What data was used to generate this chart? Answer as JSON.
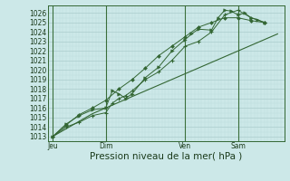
{
  "background_color": "#cce8e8",
  "grid_major_color": "#aacccc",
  "grid_minor_color": "#bbdddd",
  "line_color": "#336633",
  "xlabel": "Pression niveau de la mer( hPa )",
  "xlabel_fontsize": 7.5,
  "tick_fontsize": 5.5,
  "ylim_min": 1012.5,
  "ylim_max": 1026.8,
  "yticks": [
    1013,
    1014,
    1015,
    1016,
    1017,
    1018,
    1019,
    1020,
    1021,
    1022,
    1023,
    1024,
    1025,
    1026
  ],
  "xtick_labels": [
    "Jeu",
    "Dim",
    "Ven",
    "Sam"
  ],
  "xtick_positions": [
    0,
    32,
    80,
    112
  ],
  "vline_positions": [
    0,
    32,
    80,
    112
  ],
  "xlim_min": -3,
  "xlim_max": 140,
  "series1_x": [
    0,
    4,
    8,
    12,
    16,
    20,
    24,
    28,
    32,
    36,
    40,
    44,
    48,
    52,
    56,
    60,
    64,
    68,
    72,
    76,
    80,
    84,
    88,
    92,
    96,
    100,
    104,
    108,
    112,
    116,
    120,
    124,
    128,
    132,
    136
  ],
  "series1_y": [
    1013.0,
    1013.4,
    1013.8,
    1014.2,
    1014.6,
    1015.0,
    1015.4,
    1015.7,
    1016.0,
    1016.3,
    1016.6,
    1016.9,
    1017.2,
    1017.5,
    1017.8,
    1018.1,
    1018.4,
    1018.7,
    1019.0,
    1019.3,
    1019.6,
    1019.9,
    1020.2,
    1020.5,
    1020.8,
    1021.1,
    1021.4,
    1021.7,
    1022.0,
    1022.3,
    1022.6,
    1022.9,
    1023.2,
    1023.5,
    1023.8
  ],
  "series2_x": [
    0,
    8,
    16,
    24,
    32,
    36,
    40,
    44,
    48,
    56,
    64,
    72,
    80,
    88,
    96,
    104,
    112,
    120,
    128
  ],
  "series2_y": [
    1013.0,
    1014.0,
    1014.5,
    1015.2,
    1015.5,
    1016.5,
    1017.0,
    1017.3,
    1017.8,
    1019.0,
    1019.8,
    1021.0,
    1022.5,
    1023.0,
    1024.0,
    1025.8,
    1026.3,
    1025.5,
    1025.0
  ],
  "series3_x": [
    0,
    8,
    16,
    24,
    32,
    36,
    40,
    44,
    48,
    56,
    64,
    72,
    80,
    84,
    88,
    96,
    100,
    104,
    108,
    112,
    116,
    120,
    124,
    128
  ],
  "series3_y": [
    1013.0,
    1014.3,
    1015.2,
    1015.8,
    1016.0,
    1017.8,
    1017.5,
    1017.0,
    1017.5,
    1019.2,
    1020.3,
    1022.0,
    1023.2,
    1023.8,
    1024.3,
    1024.2,
    1025.5,
    1026.3,
    1026.2,
    1025.8,
    1026.0,
    1025.5,
    1025.3,
    1025.0
  ],
  "series4_x": [
    0,
    8,
    16,
    24,
    32,
    40,
    48,
    56,
    64,
    72,
    80,
    88,
    96,
    104,
    112,
    120,
    128
  ],
  "series4_y": [
    1013.0,
    1014.2,
    1015.3,
    1016.0,
    1016.8,
    1018.0,
    1019.0,
    1020.2,
    1021.5,
    1022.5,
    1023.5,
    1024.5,
    1025.0,
    1025.5,
    1025.5,
    1025.2,
    1025.0
  ]
}
